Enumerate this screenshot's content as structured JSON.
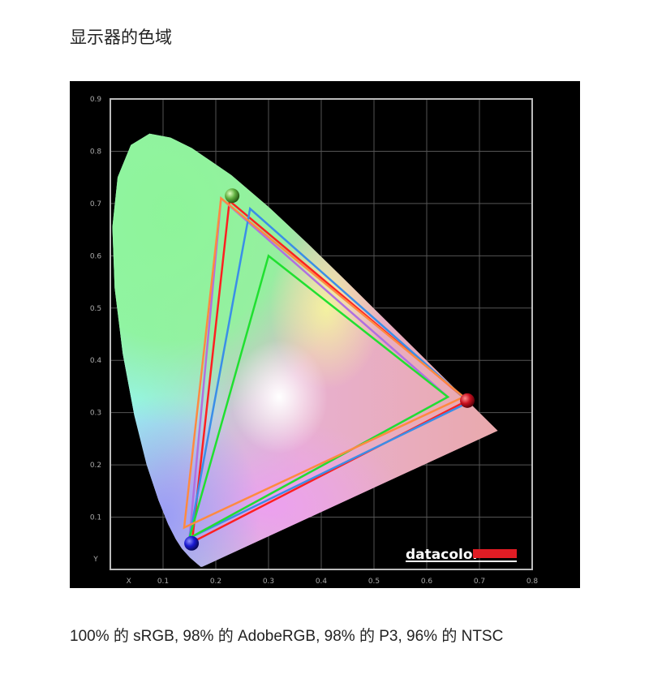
{
  "document": {
    "title": "显示器的色域",
    "caption": "100% 的 sRGB, 98% 的 AdobeRGB, 98% 的 P3, 96% 的 NTSC"
  },
  "chart_data": {
    "type": "scatter",
    "subtype": "CIE 1931 chromaticity diagram with gamut triangles",
    "xlabel": "X",
    "ylabel": "Y",
    "xlim": [
      0,
      0.8
    ],
    "ylim": [
      0,
      0.9
    ],
    "xticks": [
      "0.1",
      "0.2",
      "0.3",
      "0.4",
      "0.5",
      "0.6",
      "0.7",
      "0.8"
    ],
    "yticks": [
      "0.1",
      "0.2",
      "0.3",
      "0.4",
      "0.5",
      "0.6",
      "0.7",
      "0.8",
      "0.9"
    ],
    "grid": true,
    "background": "#000000",
    "logo": "datacolor",
    "series": [
      {
        "color": "#ff2020",
        "points": [
          [
            0.677,
            0.323
          ],
          [
            0.226,
            0.705
          ],
          [
            0.155,
            0.052
          ]
        ]
      },
      {
        "color": "#b070e0",
        "points": [
          [
            0.64,
            0.33
          ],
          [
            0.21,
            0.71
          ],
          [
            0.15,
            0.06
          ]
        ]
      },
      {
        "color": "#3a8ee8",
        "points": [
          [
            0.68,
            0.32
          ],
          [
            0.265,
            0.69
          ],
          [
            0.15,
            0.06
          ]
        ]
      },
      {
        "color": "#20e030",
        "points": [
          [
            0.64,
            0.33
          ],
          [
            0.3,
            0.6
          ],
          [
            0.15,
            0.06
          ]
        ]
      },
      {
        "color": "#ff8a40",
        "points": [
          [
            0.67,
            0.33
          ],
          [
            0.21,
            0.71
          ],
          [
            0.14,
            0.08
          ]
        ]
      }
    ],
    "primaries": [
      {
        "name": "red",
        "color": "#d01020",
        "point": [
          0.677,
          0.323
        ]
      },
      {
        "name": "green",
        "color": "#60c040",
        "point": [
          0.231,
          0.715
        ]
      },
      {
        "name": "blue",
        "color": "#2020d0",
        "point": [
          0.154,
          0.05
        ]
      }
    ]
  }
}
